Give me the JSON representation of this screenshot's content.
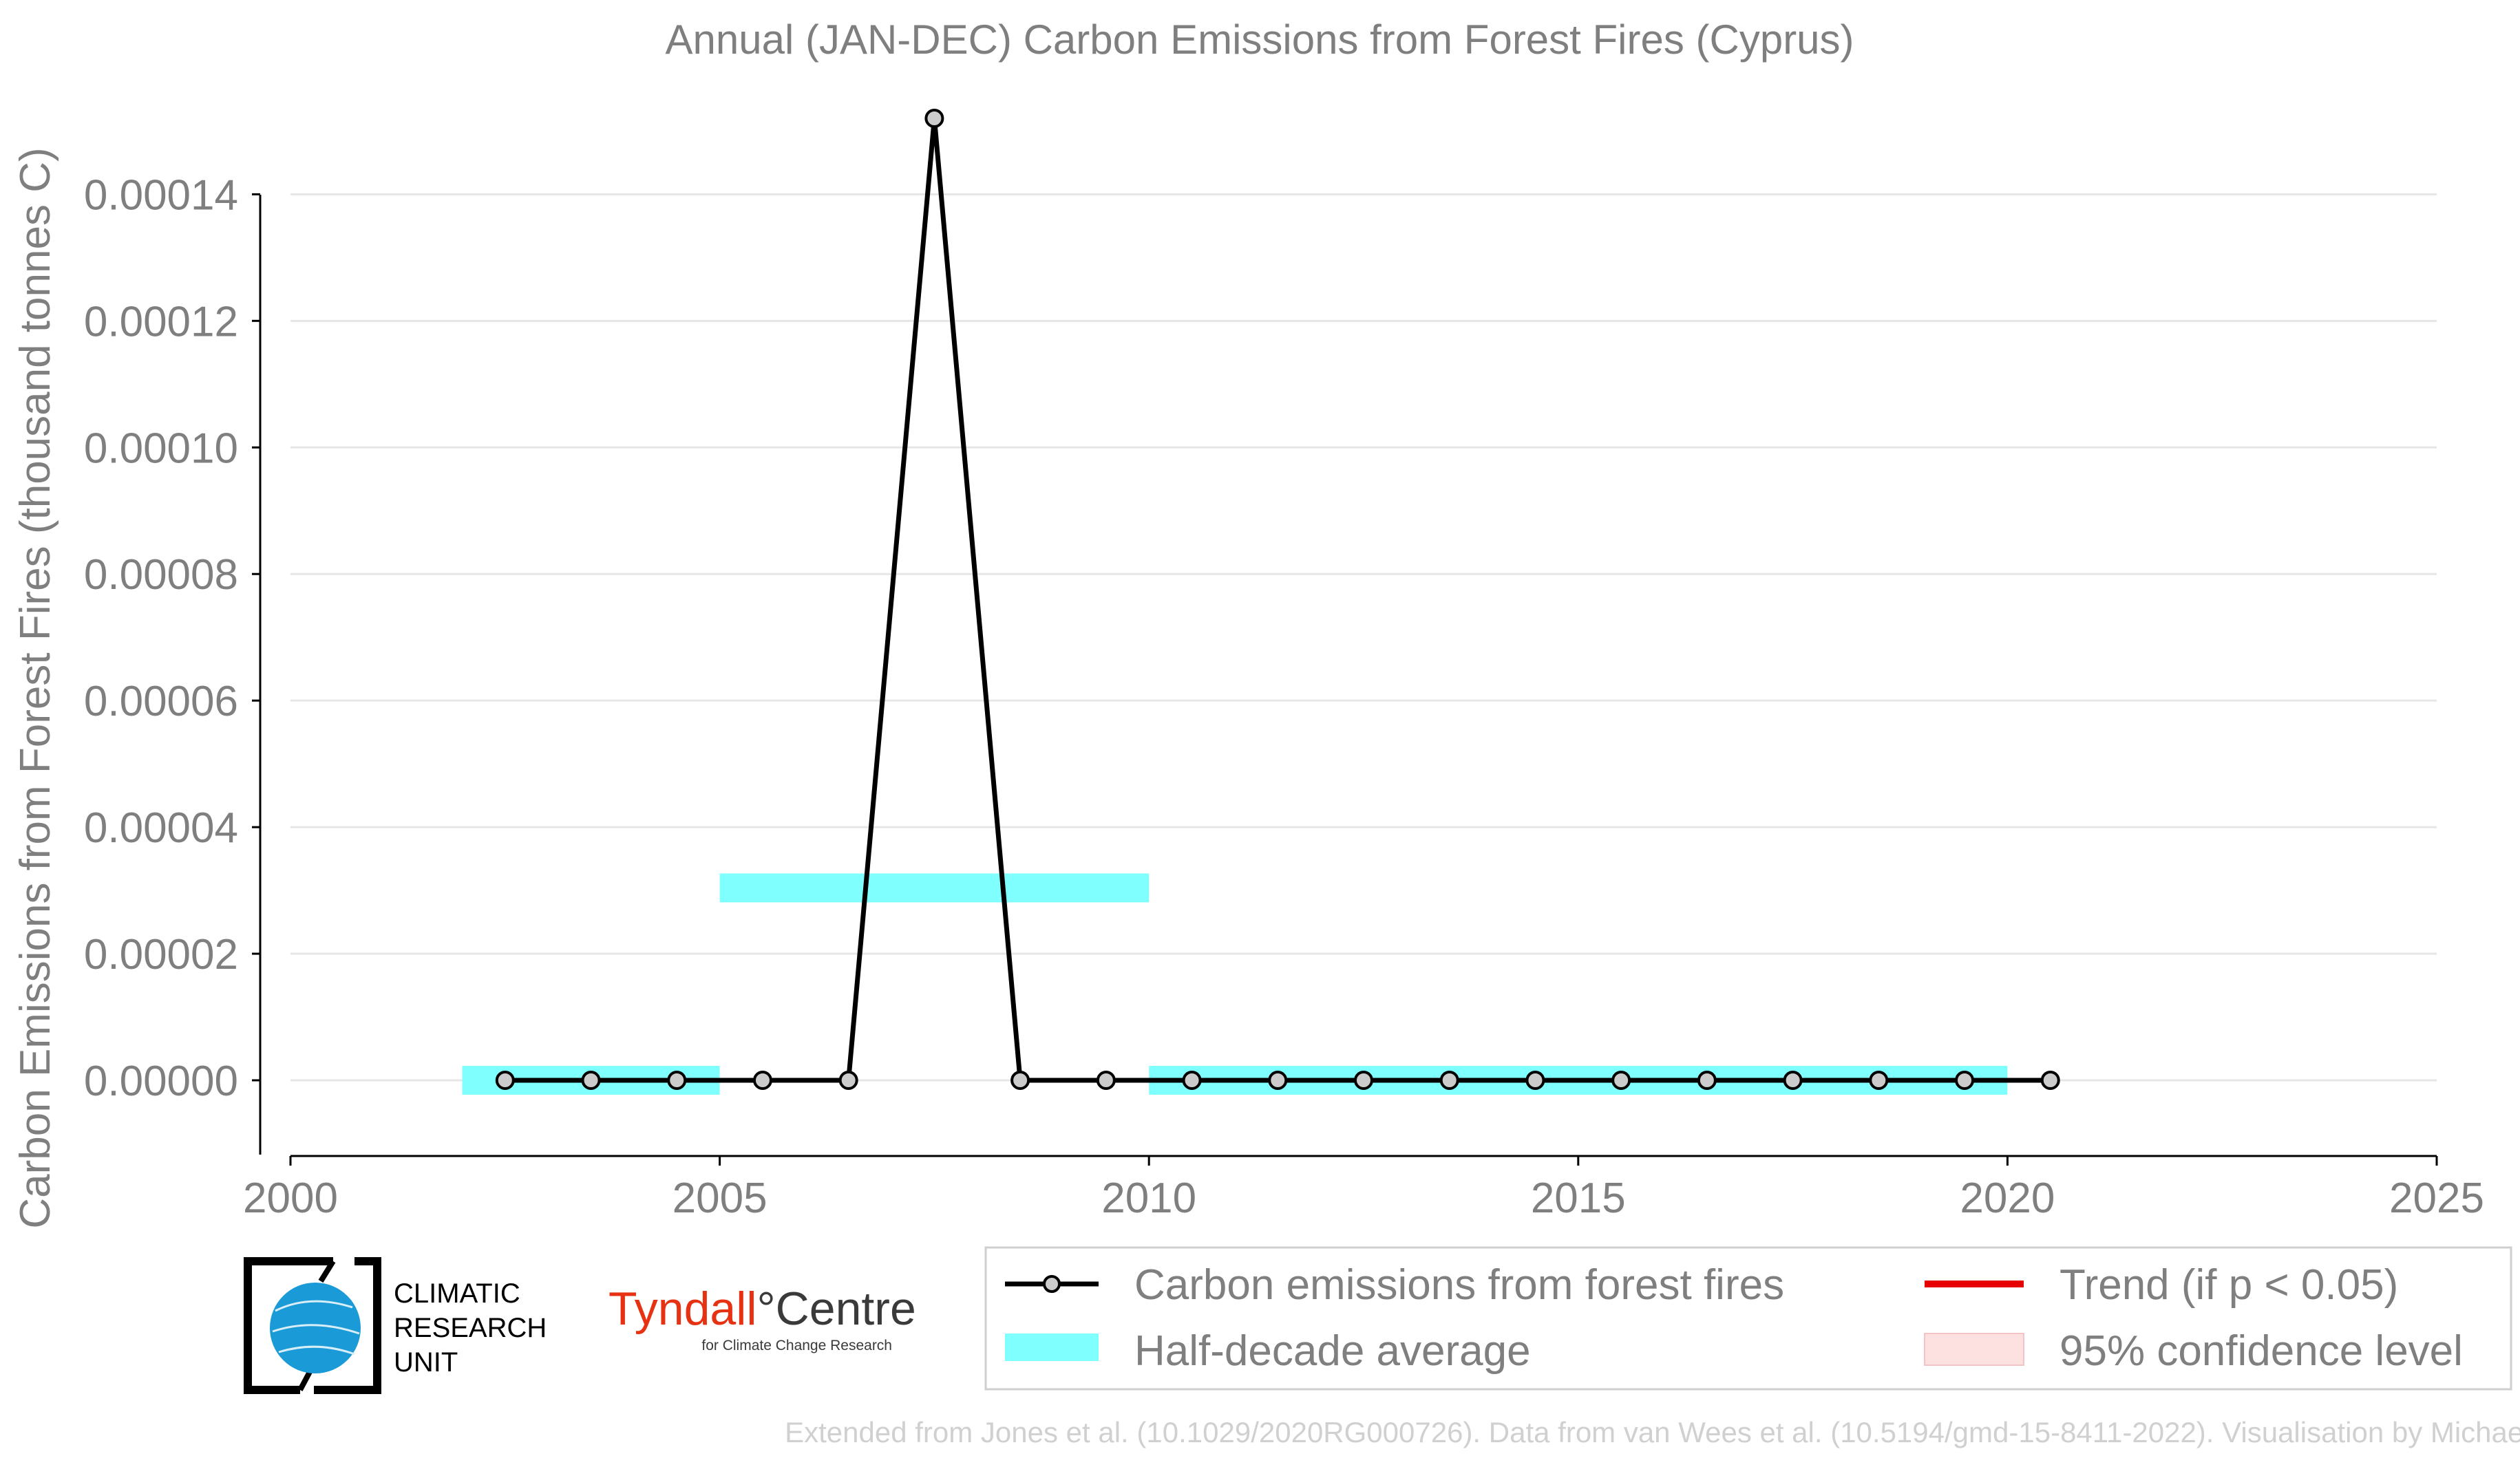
{
  "colors": {
    "series_line": "#000000",
    "marker_fill": "#cccccc",
    "half_decade": "#80ffff",
    "trend": "#e60000",
    "confidence": "#fde0e0",
    "grid": "#e6e6e6",
    "text": "#7f7f7f",
    "footer": "#d0d0d0"
  },
  "chart_data": {
    "type": "line",
    "title": "Annual (JAN-DEC) Carbon Emissions from Forest Fires (Cyprus)",
    "xlabel": "",
    "ylabel": "Carbon Emissions from Forest Fires (thousand tonnes C)",
    "xlim": [
      2000,
      2025
    ],
    "ylim": [
      -1.2e-05,
      0.000152
    ],
    "xticks": [
      "2000",
      "2005",
      "2010",
      "2015",
      "2020",
      "2025"
    ],
    "xtick_values": [
      2000,
      2005,
      2010,
      2015,
      2020,
      2025
    ],
    "yticks": [
      "0.00000",
      "0.00002",
      "0.00004",
      "0.00006",
      "0.00008",
      "0.00010",
      "0.00012",
      "0.00014"
    ],
    "ytick_values": [
      0,
      2e-05,
      4e-05,
      6e-05,
      8e-05,
      0.0001,
      0.00012,
      0.00014
    ],
    "grid": "horizontal",
    "legend_position": "bottom-right, below plot",
    "series": [
      {
        "name": "Carbon emissions from forest fires",
        "x": [
          2002.5,
          2003.5,
          2004.5,
          2005.5,
          2006.5,
          2007.5,
          2008.5,
          2009.5,
          2010.5,
          2011.5,
          2012.5,
          2013.5,
          2014.5,
          2015.5,
          2016.5,
          2017.5,
          2018.5,
          2019.5,
          2020.5
        ],
        "values": [
          0,
          0,
          0,
          0,
          0,
          0.000152,
          0,
          0,
          0,
          0,
          0,
          0,
          0,
          0,
          0,
          0,
          0,
          0,
          0
        ]
      }
    ],
    "half_decade_average": [
      {
        "x_start": 2002,
        "x_end": 2005,
        "value": 0
      },
      {
        "x_start": 2005,
        "x_end": 2010,
        "value": 3.04e-05
      },
      {
        "x_start": 2010,
        "x_end": 2020,
        "value": 0
      }
    ]
  },
  "legend": {
    "series_label": "Carbon emissions from forest fires",
    "half_decade_label": "Half-decade average",
    "trend_label": "Trend (if p < 0.05)",
    "confidence_label": "95% confidence level"
  },
  "logos": {
    "cru_line1": "CLIMATIC",
    "cru_line2": "RESEARCH",
    "cru_line3": "UNIT",
    "tyndall_part1": "Tyndall",
    "tyndall_part2": "°Centre",
    "tyndall_sub": "for Climate Change Research"
  },
  "footer": "Extended from Jones et al. (10.1029/2020RG000726). Data from van Wees et al. (10.5194/gmd-15-8411-2022). Visualisation by Michael Taylor."
}
